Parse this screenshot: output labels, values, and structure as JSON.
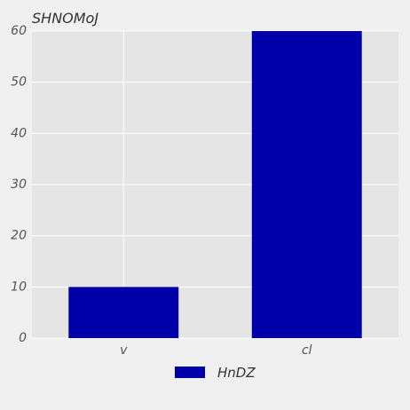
{
  "chart_data": {
    "type": "bar",
    "title": "SHNOMoJ",
    "xlabel": "",
    "ylabel": "",
    "categories": [
      "v",
      "cl"
    ],
    "series": [
      {
        "name": "HnDZ",
        "values": [
          10,
          60
        ],
        "color": "#0000aa"
      }
    ],
    "ylim": [
      0,
      60
    ],
    "yticks": [
      0,
      10,
      20,
      30,
      40,
      50,
      60
    ],
    "grid": true,
    "legend_position": "bottom-center",
    "plot_background": "#e5e5e5",
    "page_background": "#f0f0f0"
  }
}
